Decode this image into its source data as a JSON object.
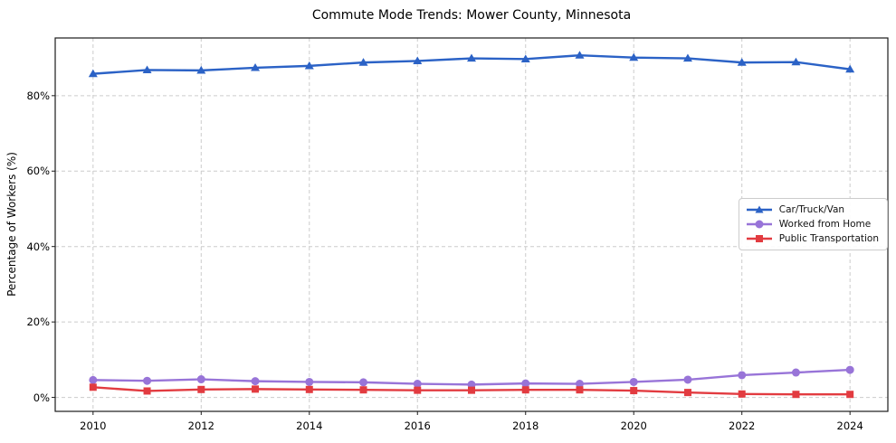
{
  "chart_data": {
    "type": "line",
    "title": "Commute Mode Trends: Mower County, Minnesota",
    "xlabel": "",
    "ylabel": "Percentage of Workers (%)",
    "x": [
      2010,
      2011,
      2012,
      2013,
      2014,
      2015,
      2016,
      2017,
      2018,
      2019,
      2020,
      2021,
      2022,
      2023,
      2024
    ],
    "series": [
      {
        "name": "Car/Truck/Van",
        "slug": "car-truck-van",
        "color": "#2b62c6",
        "marker": "triangle",
        "values": [
          85.8,
          86.8,
          86.7,
          87.4,
          87.9,
          88.8,
          89.2,
          89.9,
          89.7,
          90.7,
          90.1,
          89.9,
          88.8,
          88.9,
          87.0
        ]
      },
      {
        "name": "Worked from Home",
        "slug": "worked-from-home",
        "color": "#9874d8",
        "marker": "circle",
        "values": [
          4.6,
          4.4,
          4.8,
          4.3,
          4.1,
          4.0,
          3.6,
          3.4,
          3.7,
          3.6,
          4.1,
          4.7,
          5.9,
          6.6,
          7.3
        ]
      },
      {
        "name": "Public Transportation",
        "slug": "public-transportation",
        "color": "#e23b40",
        "marker": "square",
        "values": [
          2.7,
          1.7,
          2.1,
          2.2,
          2.1,
          2.0,
          1.9,
          1.9,
          2.0,
          2.0,
          1.8,
          1.3,
          0.9,
          0.8,
          0.8
        ]
      }
    ],
    "xticks": [
      2010,
      2012,
      2014,
      2016,
      2018,
      2020,
      2022,
      2024
    ],
    "xtick_labels": [
      "2010",
      "2012",
      "2014",
      "2016",
      "2018",
      "2020",
      "2022",
      "2024"
    ],
    "yticks": [
      0,
      20,
      40,
      60,
      80
    ],
    "ytick_labels": [
      "0%",
      "20%",
      "40%",
      "60%",
      "80%"
    ],
    "xlim": [
      2009.3,
      2024.7
    ],
    "ylim": [
      -3.7,
      95.3
    ],
    "grid": true,
    "legend_position": "center right",
    "colors": {
      "grid": "#cccccc",
      "spine": "#1c1c1c",
      "background": "#ffffff",
      "legend_border": "#cccccc",
      "text": "#111111"
    }
  }
}
